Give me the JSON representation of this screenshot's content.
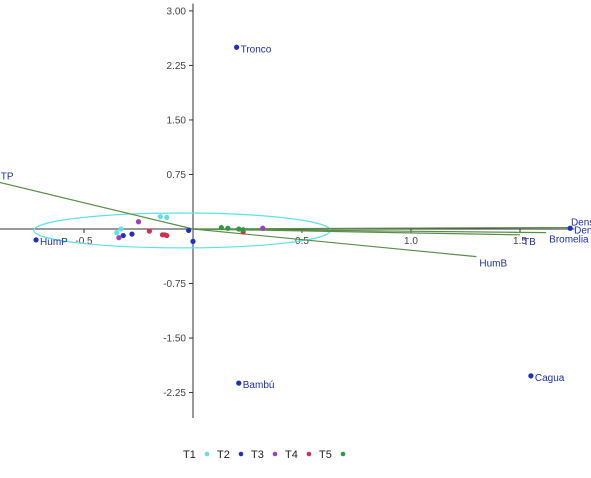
{
  "chart_data": {
    "type": "scatter",
    "x_axis": {
      "ticks": [
        -0.5,
        0.5,
        1.0,
        1.5
      ],
      "tick_labels": [
        "-0.5",
        "0.5",
        "1.0",
        "1.5"
      ],
      "range": [
        -0.9,
        1.75
      ]
    },
    "y_axis": {
      "ticks": [
        3.0,
        2.25,
        1.5,
        0.75,
        -0.75,
        -1.5,
        -2.25
      ],
      "tick_labels": [
        "3.00",
        "2.25",
        "1.50",
        "0.75",
        "-0.75",
        "-1.50",
        "-2.25"
      ],
      "range": [
        -2.6,
        3.1
      ]
    },
    "grid": false,
    "ellipse": {
      "center_x": -0.05,
      "center_y": -0.02,
      "radius_x": 0.68,
      "radius_y": 0.24,
      "color": "#5fe0ea"
    },
    "vectors": [
      {
        "label": "TP",
        "x": -0.9,
        "y": 0.65
      },
      {
        "label": "HumB",
        "x": 1.3,
        "y": -0.38
      },
      {
        "label": "Densidad",
        "x": 1.72,
        "y": 0.02
      },
      {
        "label": "Bromelia",
        "x": 1.62,
        "y": -0.05
      },
      {
        "label": "TB",
        "x": 1.5,
        "y": -0.08
      }
    ],
    "sites": [
      {
        "label": "Tronco",
        "x": 0.2,
        "y": 2.5
      },
      {
        "label": "HumP",
        "x": -0.72,
        "y": -0.15
      },
      {
        "label": "Bambú",
        "x": 0.21,
        "y": -2.12
      },
      {
        "label": "Cagua",
        "x": 1.55,
        "y": -2.02
      },
      {
        "label": "Densidad",
        "x": 1.73,
        "y": 0.01
      }
    ],
    "series": [
      {
        "name": "T1",
        "color": "#5fe0ea",
        "points": [
          [
            -0.33,
            0.0
          ],
          [
            -0.15,
            0.17
          ],
          [
            -0.12,
            0.16
          ],
          [
            -0.35,
            -0.05
          ]
        ]
      },
      {
        "name": "T2",
        "color": "#1f2fbf",
        "points": [
          [
            -0.28,
            -0.07
          ],
          [
            -0.32,
            -0.09
          ],
          [
            -0.02,
            -0.02
          ],
          [
            0.0,
            -0.17
          ]
        ]
      },
      {
        "name": "T3",
        "color": "#9b3fbf",
        "points": [
          [
            -0.25,
            0.1
          ],
          [
            -0.34,
            -0.12
          ],
          [
            -0.13,
            -0.08
          ],
          [
            0.32,
            0.01
          ]
        ]
      },
      {
        "name": "T4",
        "color": "#d2304a",
        "points": [
          [
            -0.2,
            -0.03
          ],
          [
            -0.14,
            -0.08
          ],
          [
            -0.12,
            -0.09
          ],
          [
            0.23,
            -0.04
          ]
        ]
      },
      {
        "name": "T5",
        "color": "#2e9a3f",
        "points": [
          [
            0.13,
            0.02
          ],
          [
            0.16,
            0.01
          ],
          [
            0.21,
            0.0
          ],
          [
            0.23,
            -0.01
          ]
        ]
      }
    ],
    "vector_color": "#5a8f4a",
    "axis_color": "#333333"
  }
}
